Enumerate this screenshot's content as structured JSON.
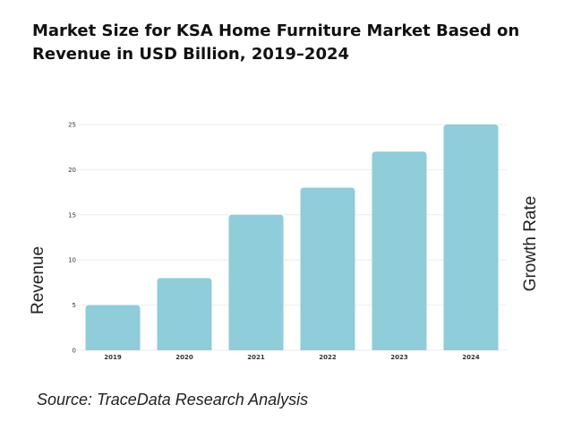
{
  "title": "Market Size for KSA Home Furniture Market Based on Revenue in USD Billion, 2019–2024",
  "source": "Source: TraceData Research Analysis",
  "chart_data": {
    "type": "bar",
    "categories": [
      "2019",
      "2020",
      "2021",
      "2022",
      "2023",
      "2024"
    ],
    "values": [
      5,
      8,
      15,
      18,
      22,
      25
    ],
    "ylabel": "Revenue",
    "y2label": "Growth Rate",
    "ylim": [
      0,
      25
    ],
    "yticks": [
      0,
      5,
      10,
      15,
      20,
      25
    ],
    "grid": true,
    "bar_color": "#8ecdd9",
    "grid_color": "#eeeeee"
  }
}
